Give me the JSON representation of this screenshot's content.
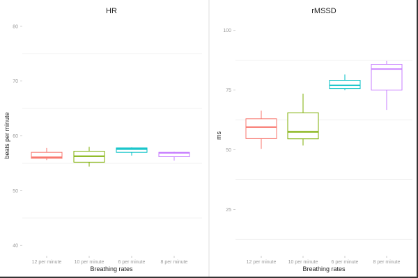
{
  "chart_data": [
    {
      "type": "box",
      "title": "HR",
      "xlabel": "Breathing rates",
      "ylabel": "beats per minute",
      "ylim": [
        38.5,
        81
      ],
      "yticks": [
        40,
        50,
        60,
        70,
        80
      ],
      "minor_grid": [
        45,
        55,
        65,
        75
      ],
      "categories": [
        "12 per minute",
        "10 per minute",
        "6 per minute",
        "8 per minute"
      ],
      "colors": [
        "#F8766D",
        "#7CAE00",
        "#00BFC4",
        "#C77CFF"
      ],
      "boxes": [
        {
          "low": 55.6,
          "q1": 55.9,
          "median": 56.1,
          "q3": 57.0,
          "high": 57.8
        },
        {
          "low": 54.4,
          "q1": 55.2,
          "median": 56.3,
          "q3": 57.2,
          "high": 58.0
        },
        {
          "low": 56.4,
          "q1": 57.0,
          "median": 57.6,
          "q3": 57.8,
          "high": 57.9
        },
        {
          "low": 55.5,
          "q1": 56.2,
          "median": 56.9,
          "q3": 57.0,
          "high": 57.1
        }
      ]
    },
    {
      "type": "box",
      "title": "rMSSD",
      "xlabel": "Breathing rates",
      "ylabel": "ms",
      "ylim": [
        6.5,
        104
      ],
      "yticks": [
        25,
        50,
        75,
        100
      ],
      "minor_grid": [
        12.5,
        37.5,
        62.5,
        87.5
      ],
      "categories": [
        "12 per minute",
        "10 per minute",
        "6 per minute",
        "8 per minute"
      ],
      "colors": [
        "#F8766D",
        "#7CAE00",
        "#00BFC4",
        "#C77CFF"
      ],
      "boxes": [
        {
          "low": 50.4,
          "q1": 54.7,
          "median": 59.5,
          "q3": 63.0,
          "high": 66.4
        },
        {
          "low": 51.8,
          "q1": 54.6,
          "median": 57.5,
          "q3": 65.5,
          "high": 73.5
        },
        {
          "low": 75.0,
          "q1": 75.6,
          "median": 77.0,
          "q3": 79.1,
          "high": 81.5
        },
        {
          "low": 66.7,
          "q1": 75.0,
          "median": 83.8,
          "q3": 85.8,
          "high": 87.2
        }
      ]
    }
  ]
}
